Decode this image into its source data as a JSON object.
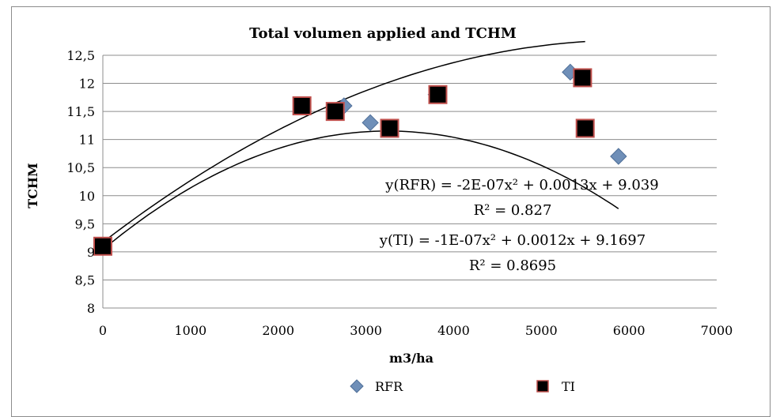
{
  "chart_data": {
    "type": "scatter",
    "title": "Total volumen applied and TCHM",
    "xlabel": "m3/ha",
    "ylabel": "TCHM",
    "xlim": [
      0,
      7000
    ],
    "ylim": [
      8,
      12.5
    ],
    "x_ticks": [
      "0",
      "1000",
      "2000",
      "3000",
      "4000",
      "5000",
      "6000",
      "7000"
    ],
    "y_ticks": [
      "8",
      "8,5",
      "9",
      "9,5",
      "10",
      "10,5",
      "11",
      "11,5",
      "12",
      "12,5"
    ],
    "grid": "horizontal",
    "legend_position": "bottom",
    "series": [
      {
        "name": "RFR",
        "marker": "diamond",
        "color": "#6f8fb8",
        "points": [
          {
            "x": 0,
            "y": 9.1
          },
          {
            "x": 2750,
            "y": 11.6
          },
          {
            "x": 3050,
            "y": 11.3
          },
          {
            "x": 3800,
            "y": 11.8
          },
          {
            "x": 5330,
            "y": 12.2
          },
          {
            "x": 5880,
            "y": 10.7
          }
        ]
      },
      {
        "name": "TI",
        "marker": "square",
        "color": "#000000",
        "edge_color": "#c0504d",
        "points": [
          {
            "x": 0,
            "y": 9.1
          },
          {
            "x": 2270,
            "y": 11.6
          },
          {
            "x": 2650,
            "y": 11.5
          },
          {
            "x": 3270,
            "y": 11.2
          },
          {
            "x": 3820,
            "y": 11.8
          },
          {
            "x": 5470,
            "y": 12.1
          },
          {
            "x": 5500,
            "y": 11.2
          }
        ]
      }
    ],
    "trendlines": [
      {
        "series": "RFR",
        "equation": "y(RFR) = -2E-07x² + 0.0013x + 9.039",
        "r2": "R² = 0.827",
        "a": -2e-07,
        "b": 0.0013,
        "c": 9.039,
        "x_range": [
          0,
          5880
        ]
      },
      {
        "series": "TI",
        "equation": "y(TI) = -1E-07x² + 0.0012x + 9.1697",
        "r2": "R² = 0.8695",
        "a": -1e-07,
        "b": 0.0012,
        "c": 9.1697,
        "x_range": [
          0,
          5500
        ]
      }
    ]
  }
}
